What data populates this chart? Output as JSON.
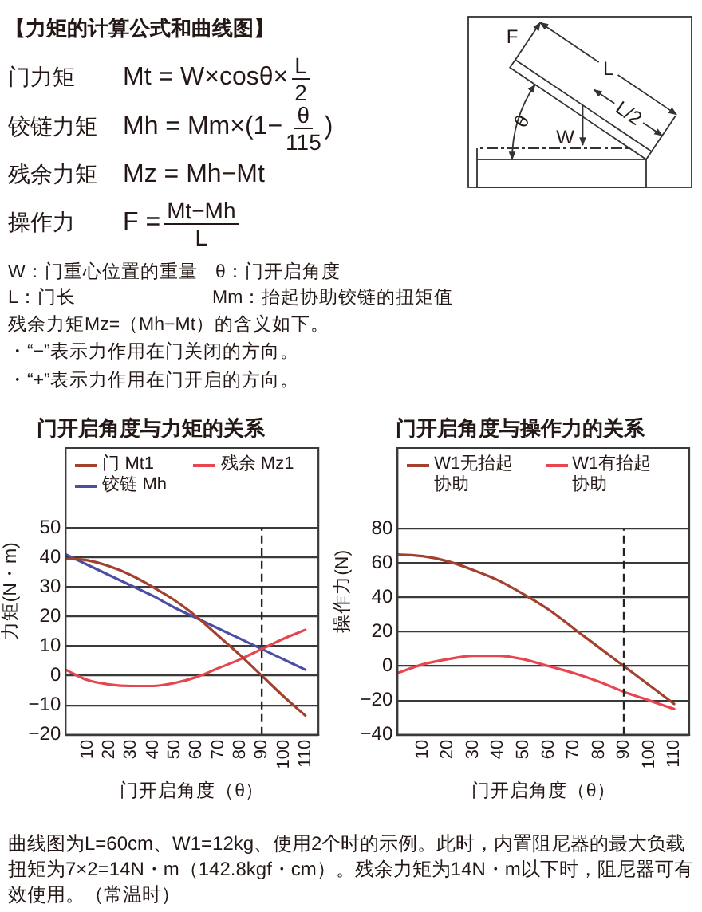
{
  "chart_data": [
    {
      "type": "line",
      "title": "门开启角度与力矩的关系",
      "xlabel": "门开启角度（θ）",
      "ylabel": "力矩(N・m)",
      "x": [
        0,
        10,
        20,
        30,
        40,
        50,
        60,
        70,
        80,
        90,
        100,
        110
      ],
      "series": [
        {
          "name": "门 Mt1",
          "color": "#a3412e",
          "values": [
            39.5,
            39,
            37,
            34,
            30,
            25.5,
            20,
            13.5,
            7,
            0,
            -7,
            -13.5
          ]
        },
        {
          "name": "残余 Mz1",
          "color": "#e8454f",
          "values": [
            2,
            -1.5,
            -3,
            -3.5,
            -3.5,
            -2.5,
            -0.5,
            2.5,
            5.5,
            9,
            12.5,
            15.5
          ]
        },
        {
          "name": "铰链 Mh",
          "color": "#4b4fa3",
          "values": [
            41,
            37.5,
            34,
            30.5,
            27,
            23,
            19.5,
            16,
            12.5,
            9,
            5.5,
            2
          ]
        }
      ],
      "xlim": [
        0,
        116
      ],
      "xticks": [
        10,
        20,
        30,
        40,
        50,
        60,
        70,
        80,
        90,
        100,
        110
      ],
      "ylim": [
        -20,
        77
      ],
      "yticks": [
        {
          "value": -20,
          "label": "−20"
        },
        {
          "value": -10,
          "label": "−10"
        },
        0,
        10,
        20,
        30,
        40,
        50
      ],
      "grid": "y",
      "legend": "top",
      "ref_lines": [
        {
          "axis": "x",
          "value": 90,
          "color": "#222222",
          "line_style": "dashed"
        }
      ],
      "annotations": [
        "【力矩的计算公式和曲线图】",
        "门力矩",
        "Mt = W×cosθ×",
        "L",
        "2",
        "铰链力矩",
        "Mh = Mm×(1−",
        "θ",
        "115",
        ")",
        "残余力矩",
        "Mz = Mh−Mt",
        "操作力",
        "F =",
        "Mt−Mh",
        "L",
        "W：门重心位置的重量",
        "θ：门开启角度",
        "L：门长",
        "Mm：抬起协助铰链的扭矩值",
        "残余力矩Mz=（Mh−Mt）的含义如下。",
        "・“−”表示力作用在门关闭的方向。",
        "・“+”表示力作用在门开启的方向。",
        "F",
        "L",
        "L/2",
        "θ",
        "W",
        "曲线图为L=60cm、W1=12kg、使用2个时的示例。此时，内置阻尼器的最大负载扭矩为7×2=14N・m（142.8kgf・cm）。残余力矩为14N・m以下时，阻尼器可有效使用。（常温时）"
      ]
    },
    {
      "type": "line",
      "title": "门开启角度与操作力的关系",
      "xlabel": "门开启角度（θ）",
      "ylabel": "操作力(N)",
      "x": [
        0,
        10,
        20,
        30,
        40,
        50,
        60,
        70,
        80,
        90,
        100,
        110
      ],
      "series": [
        {
          "name": "W1无抬起协助",
          "color": "#a3412e",
          "values": [
            65,
            64,
            61,
            56,
            50,
            42,
            33,
            22,
            11,
            0,
            -11,
            -22
          ]
        },
        {
          "name": "W1有抬起协助",
          "color": "#e8454f",
          "values": [
            -4,
            1,
            4,
            6,
            6,
            4,
            0,
            -4,
            -9,
            -15,
            -20,
            -25
          ]
        }
      ],
      "xlim": [
        0,
        116
      ],
      "xticks": [
        10,
        20,
        30,
        40,
        50,
        60,
        70,
        80,
        90,
        100,
        110
      ],
      "ylim": [
        -40,
        127
      ],
      "yticks": [
        {
          "value": -40,
          "label": "−40"
        },
        {
          "value": -20,
          "label": "−20"
        },
        0,
        20,
        40,
        60,
        80
      ],
      "grid": "y",
      "legend": "top",
      "ref_lines": [
        {
          "axis": "x",
          "value": 90,
          "color": "#222222",
          "line_style": "dashed"
        }
      ]
    }
  ]
}
